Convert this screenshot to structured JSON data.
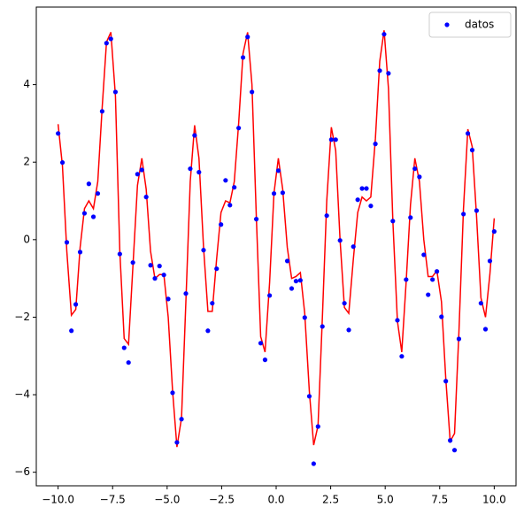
{
  "chart_data": {
    "type": "scatter",
    "x": [
      -10.0,
      -9.8,
      -9.6,
      -9.39,
      -9.19,
      -8.99,
      -8.79,
      -8.59,
      -8.38,
      -8.18,
      -7.98,
      -7.78,
      -7.58,
      -7.37,
      -7.17,
      -6.97,
      -6.77,
      -6.57,
      -6.36,
      -6.16,
      -5.96,
      -5.76,
      -5.56,
      -5.35,
      -5.15,
      -4.95,
      -4.75,
      -4.55,
      -4.34,
      -4.14,
      -3.94,
      -3.74,
      -3.54,
      -3.33,
      -3.13,
      -2.93,
      -2.73,
      -2.53,
      -2.32,
      -2.12,
      -1.92,
      -1.72,
      -1.52,
      -1.31,
      -1.11,
      -0.91,
      -0.71,
      -0.51,
      -0.3,
      -0.1,
      0.1,
      0.3,
      0.51,
      0.71,
      0.91,
      1.11,
      1.31,
      1.52,
      1.72,
      1.92,
      2.12,
      2.32,
      2.53,
      2.73,
      2.93,
      3.13,
      3.33,
      3.54,
      3.74,
      3.94,
      4.14,
      4.34,
      4.55,
      4.75,
      4.95,
      5.15,
      5.35,
      5.56,
      5.76,
      5.96,
      6.16,
      6.36,
      6.57,
      6.77,
      6.97,
      7.17,
      7.37,
      7.58,
      7.78,
      7.98,
      8.18,
      8.38,
      8.59,
      8.79,
      8.99,
      9.19,
      9.39,
      9.6,
      9.8,
      10.0
    ],
    "series": [
      {
        "name": "datos",
        "type": "scatter",
        "color": "#0000ff",
        "values": [
          2.74,
          1.99,
          -0.07,
          -2.35,
          -1.67,
          -0.32,
          0.68,
          1.44,
          0.59,
          1.19,
          3.31,
          5.07,
          5.18,
          3.81,
          -0.37,
          -2.79,
          -3.17,
          -0.59,
          1.69,
          1.8,
          1.1,
          -0.66,
          -1.0,
          -0.68,
          -0.91,
          -1.53,
          -3.95,
          -5.23,
          -4.63,
          -1.39,
          1.83,
          2.69,
          1.74,
          -0.27,
          -2.35,
          -1.64,
          -0.75,
          0.39,
          1.53,
          0.89,
          1.35,
          2.88,
          4.7,
          5.23,
          3.81,
          0.53,
          -2.67,
          -3.1,
          -1.44,
          1.19,
          1.78,
          1.21,
          -0.55,
          -1.26,
          -1.07,
          -1.05,
          -2.01,
          -4.04,
          -5.78,
          -4.82,
          -2.24,
          0.62,
          2.58,
          2.58,
          -0.02,
          -1.64,
          -2.33,
          -0.18,
          1.03,
          1.32,
          1.32,
          0.87,
          2.47,
          4.36,
          5.3,
          4.29,
          0.48,
          -2.08,
          -3.01,
          -1.03,
          0.57,
          1.83,
          1.62,
          -0.39,
          -1.42,
          -1.03,
          -0.82,
          -1.99,
          -3.65,
          -5.18,
          -5.43,
          -2.56,
          0.66,
          2.74,
          2.31,
          0.75,
          -1.64,
          -2.31,
          -0.55,
          0.21
        ]
      },
      {
        "type": "line",
        "color": "#ff0000",
        "values": [
          2.98,
          1.9,
          -0.3,
          -1.95,
          -1.8,
          -0.2,
          0.8,
          1.0,
          0.8,
          1.5,
          3.4,
          5.1,
          5.35,
          3.7,
          -0.3,
          -2.55,
          -2.7,
          -0.7,
          1.4,
          2.1,
          1.3,
          -0.3,
          -1.0,
          -0.9,
          -0.9,
          -2.0,
          -3.9,
          -5.35,
          -4.6,
          -1.6,
          1.5,
          2.95,
          2.1,
          -0.2,
          -1.85,
          -1.85,
          -0.5,
          0.7,
          1.0,
          0.95,
          1.5,
          3.0,
          4.8,
          5.35,
          4.0,
          0.6,
          -2.5,
          -2.9,
          -1.1,
          1.2,
          2.1,
          1.3,
          -0.2,
          -1.0,
          -0.95,
          -0.85,
          -1.9,
          -3.9,
          -5.3,
          -4.8,
          -2.0,
          1.0,
          2.9,
          2.3,
          0.0,
          -1.75,
          -1.9,
          -0.5,
          0.7,
          1.1,
          1.0,
          1.1,
          2.6,
          4.6,
          5.4,
          3.9,
          0.5,
          -2.1,
          -2.9,
          -1.1,
          0.9,
          2.1,
          1.5,
          0.0,
          -0.95,
          -0.95,
          -0.8,
          -1.6,
          -3.6,
          -5.2,
          -5.0,
          -2.4,
          0.8,
          2.85,
          2.4,
          0.6,
          -1.5,
          -2.0,
          -0.9,
          0.55
        ]
      }
    ],
    "xlim": [
      -11,
      11
    ],
    "ylim": [
      -6.35,
      6.0
    ],
    "xticks": [
      {
        "value": -10,
        "label": "−10.0"
      },
      {
        "value": -7.5,
        "label": "−7.5"
      },
      {
        "value": -5,
        "label": "−5.0"
      },
      {
        "value": -2.5,
        "label": "−2.5"
      },
      {
        "value": 0,
        "label": "0.0"
      },
      {
        "value": 2.5,
        "label": "2.5"
      },
      {
        "value": 5,
        "label": "5.0"
      },
      {
        "value": 7.5,
        "label": "7.5"
      },
      {
        "value": 10,
        "label": "10.0"
      }
    ],
    "yticks": [
      {
        "value": -6,
        "label": "−6"
      },
      {
        "value": -4,
        "label": "−4"
      },
      {
        "value": -2,
        "label": "−2"
      },
      0,
      2,
      4
    ],
    "legend": "upper right"
  }
}
